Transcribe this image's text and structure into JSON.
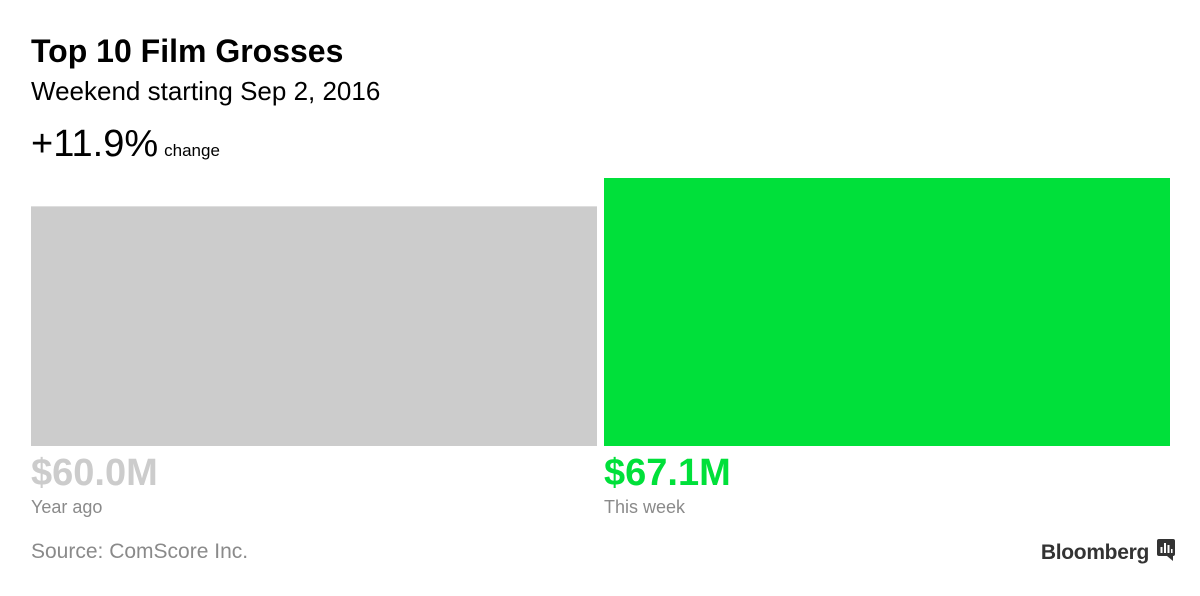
{
  "header": {
    "title": "Top 10 Film Grosses",
    "subtitle": "Weekend starting Sep 2, 2016",
    "change_value": "+11.9%",
    "change_label": "change"
  },
  "footer": {
    "source": "Source: ComScore Inc.",
    "brand": "Bloomberg",
    "brand_icon": "bloomberg-chart-icon"
  },
  "colors": {
    "year_ago": "#cccccc",
    "this_week": "#00e03a",
    "source_text": "#8a8a8a",
    "sublabel_text": "#8a8a8a"
  },
  "chart_data": {
    "type": "bar",
    "categories": [
      "Year ago",
      "This week"
    ],
    "values": [
      60.0,
      67.1
    ],
    "value_labels": [
      "$60.0M",
      "$67.1M"
    ],
    "unit": "USD millions",
    "title": "Top 10 Film Grosses",
    "subtitle": "Weekend starting Sep 2, 2016",
    "change": "+11.9%",
    "ylim": [
      0,
      67.1
    ],
    "grid": false,
    "legend": "none"
  }
}
